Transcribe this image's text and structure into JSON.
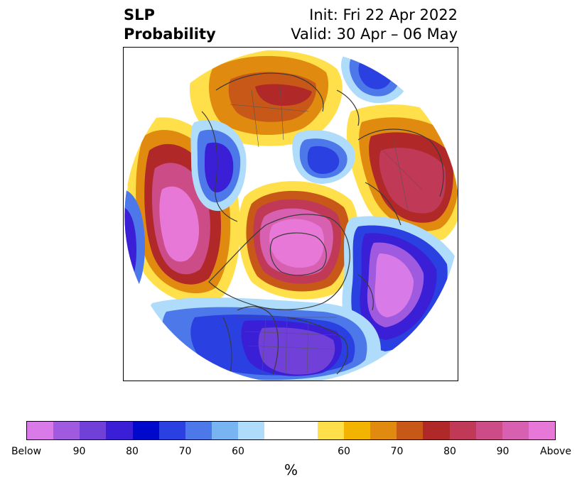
{
  "title": {
    "left_line1": "SLP",
    "left_line2": "Probability",
    "right_line1": "Init: Fri 22 Apr 2022",
    "right_line2": "Valid: 30 Apr – 06 May"
  },
  "colorbar": {
    "colors": [
      "#d87ae8",
      "#a05ae0",
      "#7040d8",
      "#3a1fd6",
      "#0008cc",
      "#2a40e0",
      "#4d78ea",
      "#78b4f2",
      "#aedcfa",
      "#ffffff",
      "#ffffff",
      "#ffe04a",
      "#f2b400",
      "#e08a10",
      "#c85818",
      "#b02828",
      "#c03a58",
      "#cc4c88",
      "#d860b0",
      "#e878d8"
    ],
    "tick_labels": [
      "Below",
      "90",
      "80",
      "70",
      "60",
      "60",
      "70",
      "80",
      "90",
      "Above"
    ],
    "units": "%"
  },
  "palette": {
    "below_strong": "#d87ae8",
    "below_mid": "#3a1fd6",
    "below_weak": "#aedcfa",
    "above_weak": "#ffe04a",
    "above_mid": "#b02828",
    "above_strong": "#e878d8",
    "coastline": "#3a3a3a"
  }
}
